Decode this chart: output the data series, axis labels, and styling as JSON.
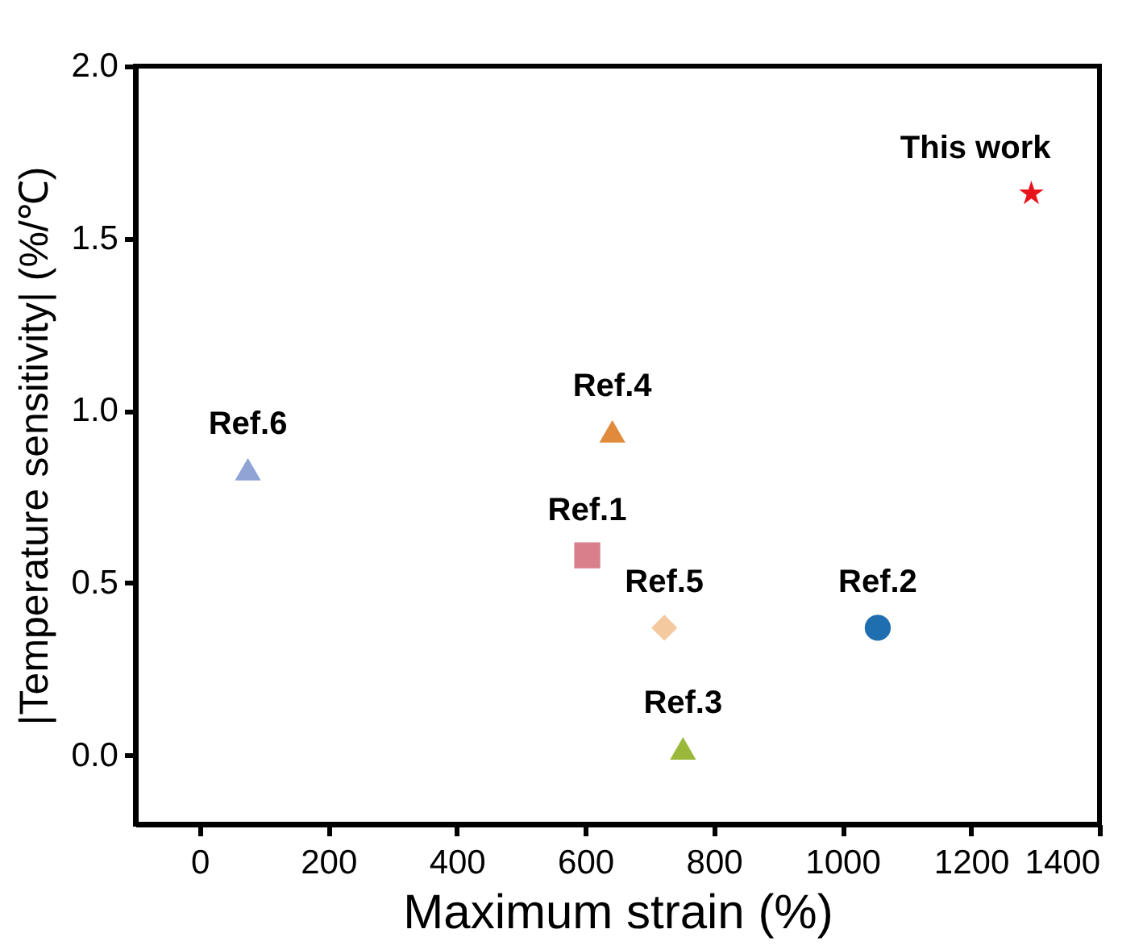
{
  "chart_data": {
    "type": "scatter",
    "xlabel": "Maximum strain (%)",
    "ylabel": "|Temperature sensitivity| (%/℃)",
    "xlim": [
      -100,
      1400
    ],
    "xticks": [
      0,
      200,
      400,
      600,
      800,
      1000,
      1200,
      1400
    ],
    "ylim": [
      -0.2,
      2.0
    ],
    "yticks": [
      {
        "value": 0,
        "label": "0.0"
      },
      {
        "value": 0.5,
        "label": "0.5"
      },
      {
        "value": 1,
        "label": "1.0"
      },
      {
        "value": 1.5,
        "label": "1.5"
      },
      {
        "value": 2,
        "label": "2.0"
      }
    ],
    "grid": false,
    "series": [
      {
        "name": "Ref.1",
        "color": "#d97f8c",
        "marker": "square",
        "x": [
          603
        ],
        "values": [
          0.58
        ]
      },
      {
        "name": "Ref.2",
        "color": "#1f6fb0",
        "marker": "circle",
        "x": [
          1055
        ],
        "values": [
          0.37
        ]
      },
      {
        "name": "Ref.3",
        "color": "#9ab83a",
        "marker": "triangle",
        "x": [
          752
        ],
        "values": [
          0.02
        ]
      },
      {
        "name": "Ref.4",
        "color": "#e08a3c",
        "marker": "triangle",
        "x": [
          642
        ],
        "values": [
          0.94
        ]
      },
      {
        "name": "Ref.5",
        "color": "#f5c9a0",
        "marker": "diamond",
        "x": [
          723
        ],
        "values": [
          0.37
        ]
      },
      {
        "name": "Ref.6",
        "color": "#8fa3d4",
        "marker": "triangle",
        "x": [
          75
        ],
        "values": [
          0.83
        ]
      },
      {
        "name": "This work",
        "color": "#e8141c",
        "marker": "star",
        "x": [
          1294
        ],
        "values": [
          1.63
        ]
      }
    ]
  }
}
